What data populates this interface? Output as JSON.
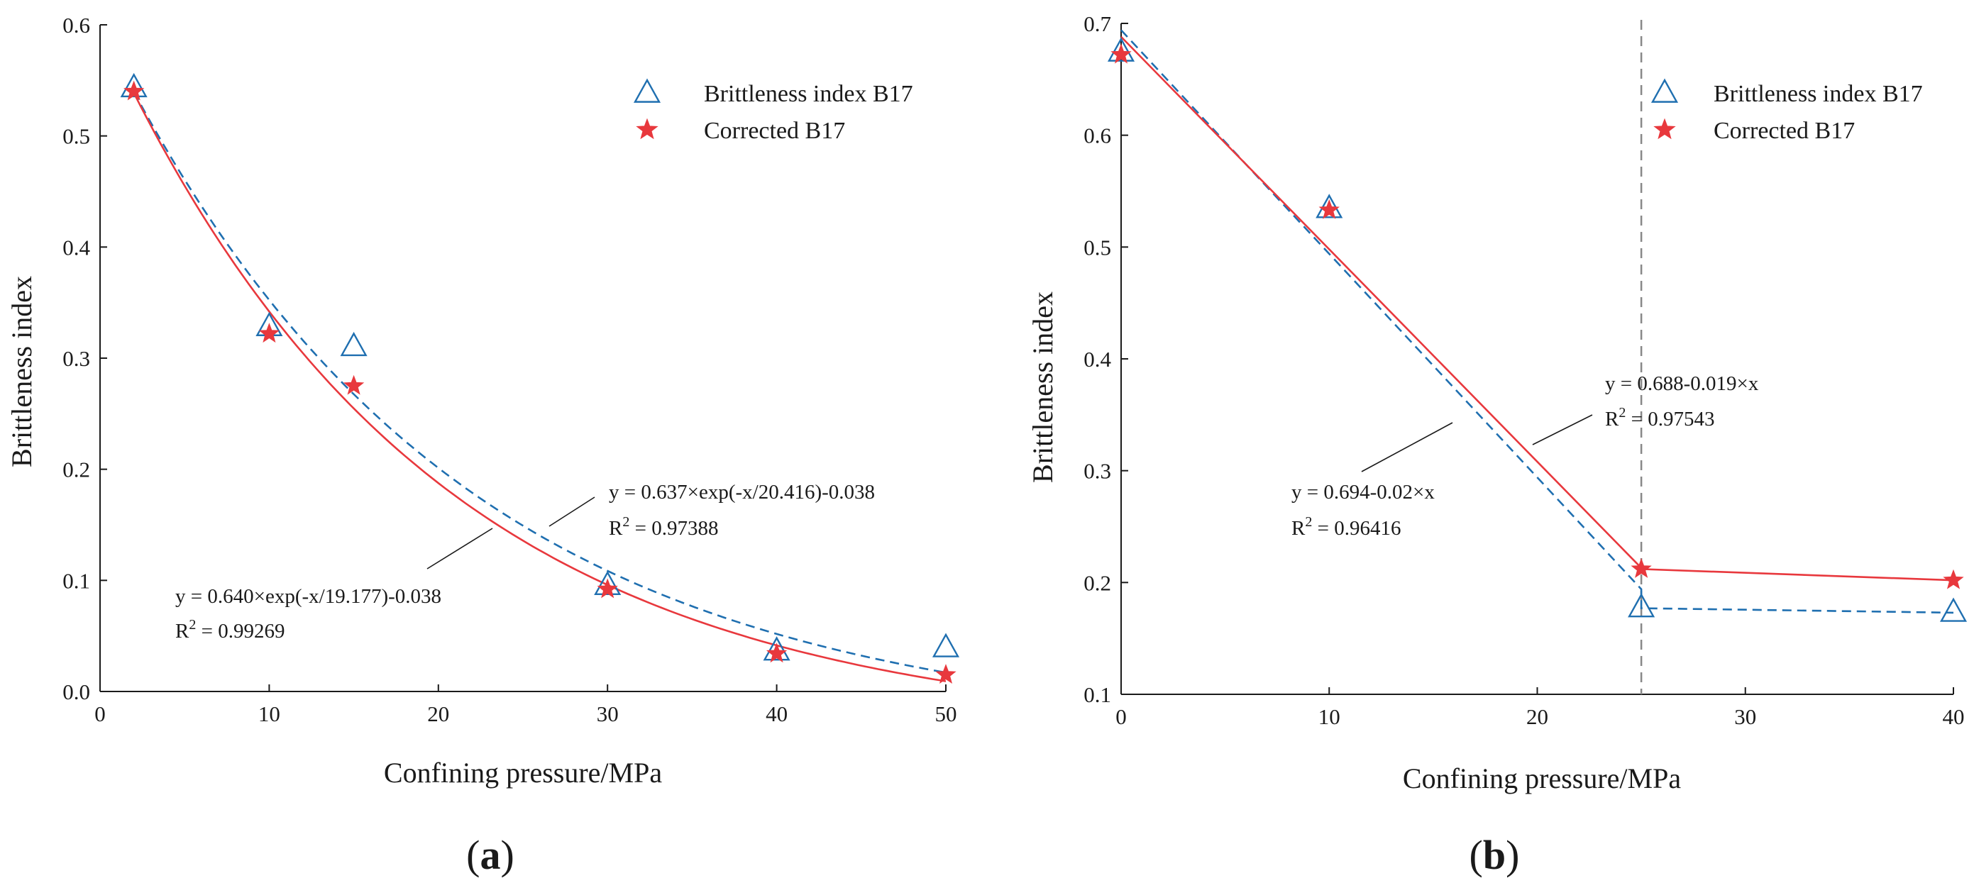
{
  "colors": {
    "triangle": "#1f6fb0",
    "star": "#e8383d",
    "dashed_fit": "#1f6fb0",
    "solid_fit": "#e8383d",
    "axis": "#1a1a1a",
    "divider": "#888888"
  },
  "chart_data": [
    {
      "panel": "a",
      "type": "scatter",
      "xlabel": "Confining pressure/MPa",
      "ylabel": "Brittleness index",
      "xlim": [
        0,
        50
      ],
      "ylim": [
        0,
        0.6
      ],
      "xticks": [
        "0",
        "10",
        "20",
        "30",
        "40",
        "50"
      ],
      "yticks": [
        "0.0",
        "0.1",
        "0.2",
        "0.3",
        "0.4",
        "0.5",
        "0.6"
      ],
      "legend_position": "top-right",
      "series": [
        {
          "name": "Brittleness index B17",
          "marker": "triangle",
          "points": [
            [
              2,
              0.543
            ],
            [
              10,
              0.328
            ],
            [
              15,
              0.31
            ],
            [
              30,
              0.095
            ],
            [
              40,
              0.036
            ],
            [
              50,
              0.039
            ]
          ]
        },
        {
          "name": "Corrected B17",
          "marker": "star",
          "points": [
            [
              2,
              0.54
            ],
            [
              10,
              0.322
            ],
            [
              15,
              0.275
            ],
            [
              30,
              0.092
            ],
            [
              40,
              0.034
            ],
            [
              50,
              0.015
            ]
          ]
        }
      ],
      "fits": [
        {
          "style": "dashed",
          "model": "exp",
          "a": 0.637,
          "t": 20.416,
          "c": -0.038,
          "equation": "y = 0.637×exp(-x/20.416)-0.038",
          "r2_label": "R",
          "r2_sup": "2",
          "r2_value": " = 0.97388"
        },
        {
          "style": "solid",
          "model": "exp",
          "a": 0.64,
          "t": 19.177,
          "c": -0.038,
          "equation": "y = 0.640×exp(-x/19.177)-0.038",
          "r2_label": "R",
          "r2_sup": "2",
          "r2_value": " = 0.99269"
        }
      ],
      "panel_label_prefix": "(",
      "panel_label_letter": "a",
      "panel_label_suffix": ")"
    },
    {
      "panel": "b",
      "type": "scatter",
      "xlabel": "Confining pressure/MPa",
      "ylabel": "Brittleness index",
      "xlim": [
        0,
        40
      ],
      "ylim": [
        0.1,
        0.7
      ],
      "xticks": [
        "0",
        "10",
        "20",
        "30",
        "40"
      ],
      "yticks": [
        "0.1",
        "0.2",
        "0.3",
        "0.4",
        "0.5",
        "0.6",
        "0.7"
      ],
      "legend_position": "top-right",
      "vertical_reference_x": 25,
      "series": [
        {
          "name": "Brittleness index B17",
          "marker": "triangle",
          "points": [
            [
              0,
              0.674
            ],
            [
              10,
              0.534
            ],
            [
              25,
              0.177
            ],
            [
              40,
              0.173
            ]
          ]
        },
        {
          "name": "Corrected  B17",
          "marker": "star",
          "points": [
            [
              0,
              0.672
            ],
            [
              10,
              0.533
            ],
            [
              25,
              0.212
            ],
            [
              40,
              0.202
            ]
          ]
        }
      ],
      "fits": [
        {
          "style": "dashed",
          "model": "linear",
          "a": 0.694,
          "b": -0.02,
          "x_end": 25,
          "tail": [
            [
              25,
              0.177
            ],
            [
              40,
              0.173
            ]
          ],
          "equation": "y = 0.694-0.02×x",
          "r2_label": "R",
          "r2_sup": "2",
          "r2_value": " = 0.96416"
        },
        {
          "style": "solid",
          "model": "linear",
          "a": 0.688,
          "b": -0.019,
          "x_end": 25,
          "tail": [
            [
              25,
              0.212
            ],
            [
              40,
              0.202
            ]
          ],
          "equation": "y = 0.688-0.019×x",
          "r2_label": "R",
          "r2_sup": "2",
          "r2_value": " = 0.97543"
        }
      ],
      "panel_label_prefix": "(",
      "panel_label_letter": "b",
      "panel_label_suffix": ")"
    }
  ]
}
